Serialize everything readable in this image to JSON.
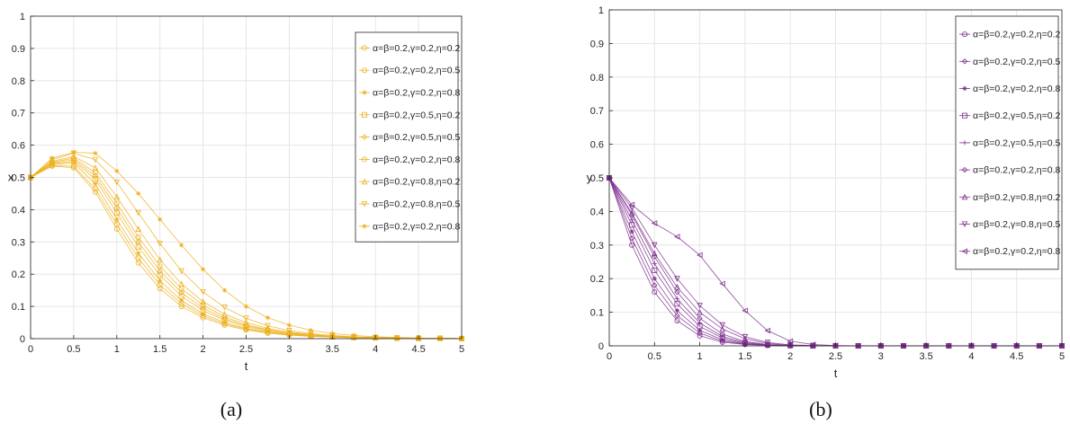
{
  "chart_data": [
    {
      "type": "line",
      "panel": "(a)",
      "xlabel": "t",
      "ylabel": "x",
      "xlim": [
        0,
        5
      ],
      "ylim": [
        0,
        1
      ],
      "xticks": [
        "0",
        "0.5",
        "1",
        "1.5",
        "2",
        "2.5",
        "3",
        "3.5",
        "4",
        "4.5",
        "5"
      ],
      "yticks": [
        "0",
        "0.1",
        "0.2",
        "0.3",
        "0.4",
        "0.5",
        "0.6",
        "0.7",
        "0.8",
        "0.9",
        "1"
      ],
      "grid": true,
      "legend_position": "top-right",
      "color": "#EDB120",
      "x": [
        0,
        0.25,
        0.5,
        0.75,
        1,
        1.25,
        1.5,
        1.75,
        2,
        2.25,
        2.5,
        2.75,
        3,
        3.25,
        3.5,
        3.75,
        4,
        4.25,
        4.5,
        4.75,
        5
      ],
      "series": [
        {
          "name": "α=β=0.2,γ=0.2,η=0.2",
          "marker": "o",
          "values": [
            0.5,
            0.535,
            0.53,
            0.455,
            0.34,
            0.235,
            0.155,
            0.1,
            0.065,
            0.042,
            0.027,
            0.017,
            0.011,
            0.007,
            0.005,
            0.003,
            0.002,
            0.001,
            0.001,
            0.001,
            0
          ]
        },
        {
          "name": "α=β=0.2,γ=0.2,η=0.5",
          "marker": "o",
          "values": [
            0.5,
            0.537,
            0.535,
            0.465,
            0.355,
            0.25,
            0.167,
            0.109,
            0.071,
            0.046,
            0.03,
            0.019,
            0.012,
            0.008,
            0.005,
            0.003,
            0.002,
            0.001,
            0.001,
            0.001,
            0
          ]
        },
        {
          "name": "α=β=0.2,γ=0.2,η=0.8",
          "marker": "*",
          "values": [
            0.5,
            0.54,
            0.545,
            0.48,
            0.37,
            0.265,
            0.18,
            0.118,
            0.077,
            0.05,
            0.032,
            0.021,
            0.013,
            0.009,
            0.006,
            0.004,
            0.002,
            0.001,
            0.001,
            0.001,
            0
          ]
        },
        {
          "name": "α=β=0.2,γ=0.5,η=0.2",
          "marker": "s",
          "values": [
            0.5,
            0.542,
            0.55,
            0.495,
            0.39,
            0.285,
            0.197,
            0.132,
            0.087,
            0.057,
            0.037,
            0.024,
            0.015,
            0.01,
            0.006,
            0.004,
            0.003,
            0.002,
            0.001,
            0.001,
            0
          ]
        },
        {
          "name": "α=β=0.2,γ=0.5,η=0.5",
          "marker": "d",
          "values": [
            0.5,
            0.545,
            0.555,
            0.505,
            0.405,
            0.3,
            0.21,
            0.143,
            0.095,
            0.062,
            0.04,
            0.026,
            0.017,
            0.011,
            0.007,
            0.004,
            0.003,
            0.002,
            0.001,
            0.001,
            0
          ]
        },
        {
          "name": "α=β=0.2,γ=0.2,η=0.8",
          "marker": "o",
          "values": [
            0.5,
            0.547,
            0.56,
            0.515,
            0.42,
            0.315,
            0.225,
            0.155,
            0.104,
            0.068,
            0.044,
            0.028,
            0.018,
            0.012,
            0.007,
            0.005,
            0.003,
            0.002,
            0.001,
            0.001,
            0
          ]
        },
        {
          "name": "α=β=0.2,γ=0.8,η=0.2",
          "marker": "^",
          "values": [
            0.5,
            0.55,
            0.565,
            0.53,
            0.44,
            0.34,
            0.245,
            0.17,
            0.115,
            0.076,
            0.05,
            0.032,
            0.021,
            0.013,
            0.008,
            0.005,
            0.003,
            0.002,
            0.001,
            0.001,
            0
          ]
        },
        {
          "name": "α=β=0.2,γ=0.8,η=0.5",
          "marker": "v",
          "values": [
            0.5,
            0.555,
            0.575,
            0.555,
            0.485,
            0.39,
            0.295,
            0.21,
            0.145,
            0.097,
            0.063,
            0.04,
            0.025,
            0.016,
            0.01,
            0.006,
            0.004,
            0.002,
            0.001,
            0.001,
            0
          ]
        },
        {
          "name": "α=β=0.2,γ=0.2,η=0.8",
          "marker": "*",
          "values": [
            0.5,
            0.56,
            0.578,
            0.575,
            0.52,
            0.45,
            0.37,
            0.29,
            0.215,
            0.15,
            0.1,
            0.065,
            0.042,
            0.026,
            0.016,
            0.01,
            0.006,
            0.004,
            0.002,
            0.001,
            0.001
          ]
        }
      ]
    },
    {
      "type": "line",
      "panel": "(b)",
      "xlabel": "t",
      "ylabel": "y",
      "xlim": [
        0,
        5
      ],
      "ylim": [
        0,
        1
      ],
      "xticks": [
        "0",
        "0.5",
        "1",
        "1.5",
        "2",
        "2.5",
        "3",
        "3.5",
        "4",
        "4.5",
        "5"
      ],
      "yticks": [
        "0",
        "0.1",
        "0.2",
        "0.3",
        "0.4",
        "0.5",
        "0.6",
        "0.7",
        "0.8",
        "0.9",
        "1"
      ],
      "grid": true,
      "legend_position": "top-right",
      "color": "#7E2F8E",
      "x": [
        0,
        0.25,
        0.5,
        0.75,
        1,
        1.25,
        1.5,
        1.75,
        2,
        2.25,
        2.5,
        2.75,
        3,
        3.25,
        3.5,
        3.75,
        4,
        4.25,
        4.5,
        4.75,
        5
      ],
      "series": [
        {
          "name": "α=β=0.2,γ=0.2,η=0.2",
          "marker": "o",
          "values": [
            0.5,
            0.3,
            0.16,
            0.075,
            0.03,
            0.011,
            0.004,
            0.001,
            0,
            0,
            0,
            0,
            0,
            0,
            0,
            0,
            0,
            0,
            0,
            0,
            0
          ]
        },
        {
          "name": "α=β=0.2,γ=0.2,η=0.5",
          "marker": "d",
          "values": [
            0.5,
            0.32,
            0.18,
            0.09,
            0.038,
            0.014,
            0.005,
            0.002,
            0,
            0,
            0,
            0,
            0,
            0,
            0,
            0,
            0,
            0,
            0,
            0,
            0
          ]
        },
        {
          "name": "α=β=0.2,γ=0.2,η=0.8",
          "marker": "*",
          "values": [
            0.5,
            0.34,
            0.2,
            0.105,
            0.046,
            0.018,
            0.006,
            0.002,
            0.001,
            0,
            0,
            0,
            0,
            0,
            0,
            0,
            0,
            0,
            0,
            0,
            0
          ]
        },
        {
          "name": "α=β=0.2,γ=0.5,η=0.2",
          "marker": "s",
          "values": [
            0.5,
            0.36,
            0.225,
            0.125,
            0.058,
            0.023,
            0.008,
            0.003,
            0.001,
            0,
            0,
            0,
            0,
            0,
            0,
            0,
            0,
            0,
            0,
            0,
            0
          ]
        },
        {
          "name": "α=β=0.2,γ=0.5,η=0.5",
          "marker": "+",
          "values": [
            0.5,
            0.375,
            0.245,
            0.14,
            0.068,
            0.028,
            0.01,
            0.003,
            0.001,
            0,
            0,
            0,
            0,
            0,
            0,
            0,
            0,
            0,
            0,
            0,
            0
          ]
        },
        {
          "name": "α=β=0.2,γ=0.2,η=0.8",
          "marker": "d",
          "values": [
            0.5,
            0.39,
            0.265,
            0.16,
            0.082,
            0.035,
            0.013,
            0.004,
            0.001,
            0,
            0,
            0,
            0,
            0,
            0,
            0,
            0,
            0,
            0,
            0,
            0
          ]
        },
        {
          "name": "α=β=0.2,γ=0.8,η=0.2",
          "marker": "^",
          "values": [
            0.5,
            0.395,
            0.275,
            0.175,
            0.1,
            0.05,
            0.021,
            0.007,
            0.002,
            0.001,
            0,
            0,
            0,
            0,
            0,
            0,
            0,
            0,
            0,
            0,
            0
          ]
        },
        {
          "name": "α=β=0.2,γ=0.8,η=0.5",
          "marker": "v",
          "values": [
            0.5,
            0.41,
            0.3,
            0.2,
            0.12,
            0.062,
            0.027,
            0.01,
            0.003,
            0.001,
            0,
            0,
            0,
            0,
            0,
            0,
            0,
            0,
            0,
            0,
            0
          ]
        },
        {
          "name": "α=β=0.2,γ=0.2,η=0.8",
          "marker": "<",
          "values": [
            0.5,
            0.42,
            0.365,
            0.325,
            0.27,
            0.185,
            0.105,
            0.045,
            0.014,
            0.004,
            0.001,
            0,
            0,
            0,
            0,
            0,
            0,
            0,
            0,
            0,
            0
          ]
        }
      ]
    }
  ]
}
